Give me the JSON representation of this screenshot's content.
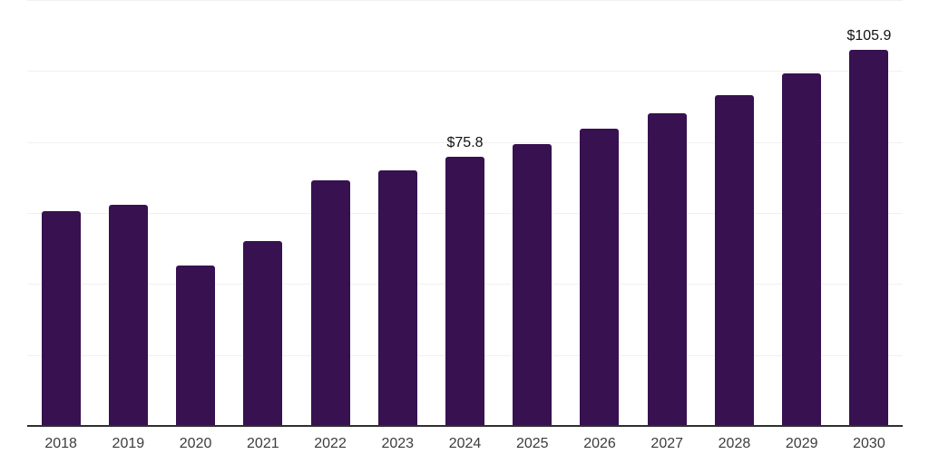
{
  "chart_data": {
    "type": "bar",
    "title": "",
    "xlabel": "",
    "ylabel": "",
    "categories": [
      "2018",
      "2019",
      "2020",
      "2021",
      "2022",
      "2023",
      "2024",
      "2025",
      "2026",
      "2027",
      "2028",
      "2029",
      "2030"
    ],
    "values": [
      60.6,
      62.4,
      45.2,
      52.2,
      69.3,
      72.1,
      75.8,
      79.5,
      83.8,
      88.2,
      93.3,
      99.4,
      105.9
    ],
    "value_labels": {
      "2024": "$75.8",
      "2030": "$105.9"
    },
    "ylim": [
      0,
      120
    ],
    "grid_step": 20,
    "grid": "horizontal",
    "legend_position": "none",
    "y_axis_tick_labels_shown": false,
    "colors": {
      "bar": "#371150",
      "axis_line": "#2f2f2f",
      "gridline": "#f1f1f1",
      "tick_label": "#3c3c3c",
      "value_label": "#121212",
      "background": "#ffffff"
    }
  }
}
